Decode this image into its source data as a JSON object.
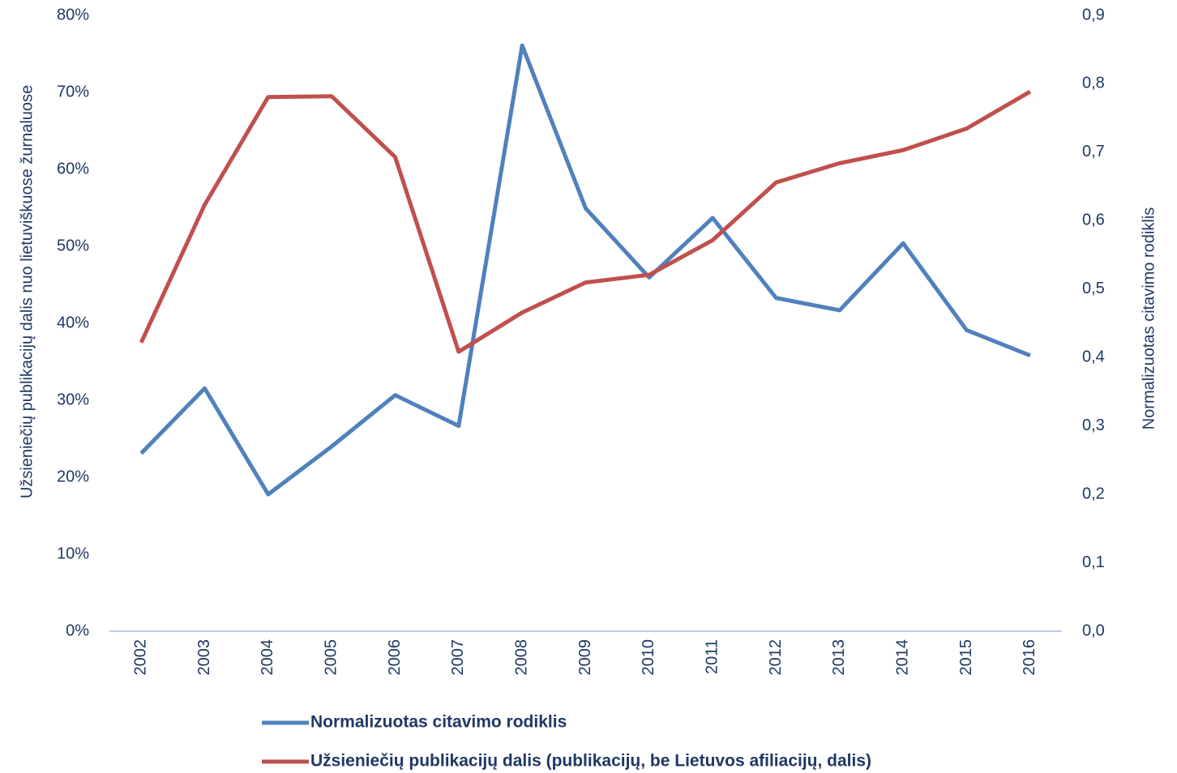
{
  "chart_data": {
    "type": "line",
    "categories": [
      "2002",
      "2003",
      "2004",
      "2005",
      "2006",
      "2007",
      "2008",
      "2009",
      "2010",
      "2011",
      "2012",
      "2013",
      "2014",
      "2015",
      "2016"
    ],
    "series": [
      {
        "name": "Normalizuotas citavimo rodiklis",
        "color": "#4f81bd",
        "axis": "y2",
        "values": [
          0.26,
          0.355,
          0.2,
          0.27,
          0.345,
          0.3,
          0.856,
          0.618,
          0.517,
          0.604,
          0.487,
          0.469,
          0.567,
          0.44,
          0.403
        ]
      },
      {
        "name": "Užsieniečių publikacijų dalis (publikacijų, be Lietuvos afiliacijų, dalis)",
        "color": "#c0504d",
        "values": [
          37.5,
          55.4,
          69.4,
          69.5,
          61.6,
          36.3,
          41.4,
          45.3,
          46.3,
          50.8,
          58.3,
          60.8,
          62.5,
          65.3,
          70.1
        ]
      }
    ],
    "y_label": "Užsieniečių publikacijų dalis nuo lietuviškuose žurnaluose",
    "y2_label": "Normalizuotas citavimo rodiklis",
    "ylim": [
      0,
      80
    ],
    "yticks": [
      {
        "value": 0,
        "label": "0%"
      },
      {
        "value": 10,
        "label": "10%"
      },
      {
        "value": 20,
        "label": "20%"
      },
      {
        "value": 30,
        "label": "30%"
      },
      {
        "value": 40,
        "label": "40%"
      },
      {
        "value": 50,
        "label": "50%"
      },
      {
        "value": 60,
        "label": "60%"
      },
      {
        "value": 70,
        "label": "70%"
      },
      {
        "value": 80,
        "label": "80%"
      }
    ],
    "y2lim": [
      0,
      0.9
    ],
    "y2ticks": [
      {
        "value": 0,
        "label": "0,0"
      },
      {
        "value": 0.1,
        "label": "0,1"
      },
      {
        "value": 0.2,
        "label": "0,2"
      },
      {
        "value": 0.3,
        "label": "0,3"
      },
      {
        "value": 0.4,
        "label": "0,4"
      },
      {
        "value": 0.5,
        "label": "0,5"
      },
      {
        "value": 0.6,
        "label": "0,6"
      },
      {
        "value": 0.7,
        "label": "0,7"
      },
      {
        "value": 0.8,
        "label": "0,8"
      },
      {
        "value": 0.9,
        "label": "0,9"
      }
    ],
    "grid": false,
    "legend": "bottom"
  }
}
